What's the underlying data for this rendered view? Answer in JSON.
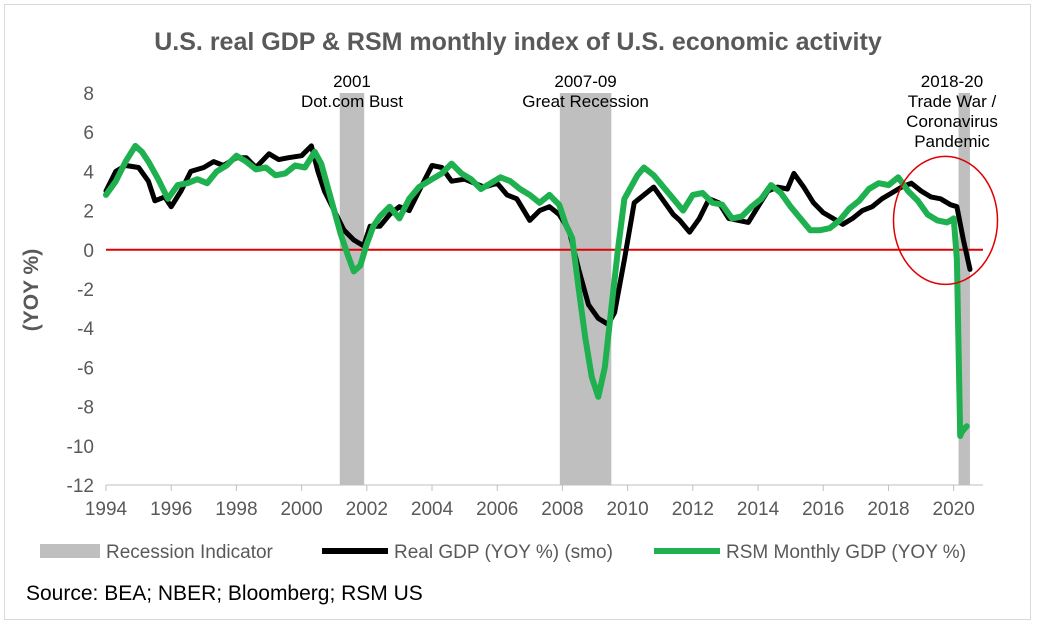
{
  "chart_data": {
    "type": "line",
    "title": "U.S. real GDP & RSM monthly index of U.S. economic activity",
    "ylabel": "(YOY %)",
    "xlabel": "",
    "xlim": [
      1994,
      2020.9
    ],
    "ylim": [
      -12,
      8
    ],
    "x_ticks": [
      1994,
      1996,
      1998,
      2000,
      2002,
      2004,
      2006,
      2008,
      2010,
      2012,
      2014,
      2016,
      2018,
      2020
    ],
    "y_ticks": [
      8,
      6,
      4,
      2,
      0,
      -2,
      -4,
      -6,
      -8,
      -10,
      -12
    ],
    "recessions": [
      {
        "start": 2001.17,
        "end": 2001.92,
        "label_lines": [
          "2001",
          "Dot.com Bust"
        ]
      },
      {
        "start": 2007.92,
        "end": 2009.5,
        "label_lines": [
          "2007-09",
          "Great Recession"
        ]
      },
      {
        "start": 2020.15,
        "end": 2020.5,
        "label_lines": [
          "2018-20",
          "Trade War /",
          "Coronavirus",
          "Pandemic"
        ]
      }
    ],
    "series": [
      {
        "name": "Real GDP (YOY %) (smo)",
        "color": "#000000",
        "x": [
          1994.0,
          1994.3,
          1994.6,
          1995.0,
          1995.3,
          1995.5,
          1995.8,
          1996.0,
          1996.3,
          1996.6,
          1997.0,
          1997.3,
          1997.6,
          1998.0,
          1998.3,
          1998.6,
          1999.0,
          1999.3,
          1999.6,
          2000.0,
          2000.3,
          2000.5,
          2000.7,
          2001.0,
          2001.3,
          2001.6,
          2001.9,
          2002.1,
          2002.4,
          2002.7,
          2003.0,
          2003.3,
          2003.6,
          2004.0,
          2004.3,
          2004.6,
          2005.0,
          2005.3,
          2005.6,
          2006.0,
          2006.3,
          2006.6,
          2007.0,
          2007.3,
          2007.6,
          2007.9,
          2008.2,
          2008.5,
          2008.8,
          2009.1,
          2009.4,
          2009.6,
          2009.9,
          2010.2,
          2010.5,
          2010.8,
          2011.1,
          2011.4,
          2011.6,
          2011.9,
          2012.2,
          2012.5,
          2012.8,
          2013.1,
          2013.4,
          2013.7,
          2014.0,
          2014.3,
          2014.6,
          2014.9,
          2015.1,
          2015.4,
          2015.7,
          2016.0,
          2016.3,
          2016.6,
          2016.9,
          2017.2,
          2017.5,
          2017.8,
          2018.1,
          2018.4,
          2018.7,
          2019.0,
          2019.3,
          2019.6,
          2019.9,
          2020.1,
          2020.3,
          2020.5
        ],
        "values": [
          3.0,
          4.0,
          4.3,
          4.2,
          3.5,
          2.5,
          2.7,
          2.2,
          3.0,
          4.0,
          4.2,
          4.5,
          4.3,
          4.7,
          4.7,
          4.2,
          4.9,
          4.6,
          4.7,
          4.8,
          5.3,
          4.0,
          3.0,
          2.0,
          1.0,
          0.5,
          0.2,
          1.2,
          1.2,
          1.8,
          2.2,
          2.0,
          3.0,
          4.3,
          4.2,
          3.5,
          3.6,
          3.4,
          3.2,
          3.4,
          2.8,
          2.6,
          1.5,
          2.0,
          2.2,
          1.8,
          1.0,
          -1.0,
          -2.8,
          -3.5,
          -3.8,
          -3.2,
          -0.5,
          2.4,
          2.8,
          3.2,
          2.5,
          1.8,
          1.5,
          0.9,
          1.6,
          2.6,
          2.4,
          1.6,
          1.5,
          1.4,
          2.2,
          3.0,
          3.2,
          3.1,
          3.9,
          3.2,
          2.4,
          1.9,
          1.6,
          1.3,
          1.6,
          2.0,
          2.2,
          2.6,
          2.9,
          3.2,
          3.4,
          3.0,
          2.7,
          2.6,
          2.3,
          2.2,
          0.5,
          -1.0
        ]
      },
      {
        "name": "RSM Monthly GDP (YOY %)",
        "color": "#1fb14f",
        "x": [
          1994.0,
          1994.3,
          1994.6,
          1994.9,
          1995.1,
          1995.3,
          1995.6,
          1995.9,
          1996.2,
          1996.5,
          1996.8,
          1997.1,
          1997.4,
          1997.7,
          1998.0,
          1998.3,
          1998.6,
          1998.9,
          1999.2,
          1999.5,
          1999.8,
          2000.1,
          2000.4,
          2000.6,
          2000.8,
          2001.0,
          2001.2,
          2001.4,
          2001.6,
          2001.8,
          2002.0,
          2002.2,
          2002.4,
          2002.7,
          2003.0,
          2003.3,
          2003.6,
          2004.0,
          2004.3,
          2004.6,
          2004.9,
          2005.2,
          2005.5,
          2005.8,
          2006.1,
          2006.4,
          2006.7,
          2007.0,
          2007.3,
          2007.6,
          2007.9,
          2008.1,
          2008.3,
          2008.5,
          2008.7,
          2008.9,
          2009.1,
          2009.3,
          2009.5,
          2009.7,
          2009.9,
          2010.1,
          2010.3,
          2010.5,
          2010.8,
          2011.1,
          2011.4,
          2011.7,
          2012.0,
          2012.3,
          2012.6,
          2012.9,
          2013.2,
          2013.5,
          2013.8,
          2014.1,
          2014.4,
          2014.7,
          2015.0,
          2015.3,
          2015.6,
          2015.9,
          2016.2,
          2016.5,
          2016.8,
          2017.1,
          2017.4,
          2017.7,
          2018.0,
          2018.3,
          2018.6,
          2018.9,
          2019.2,
          2019.5,
          2019.8,
          2020.0,
          2020.1,
          2020.2,
          2020.25,
          2020.3,
          2020.4
        ],
        "values": [
          2.8,
          3.5,
          4.5,
          5.3,
          5.0,
          4.5,
          3.6,
          2.6,
          3.3,
          3.4,
          3.6,
          3.4,
          4.0,
          4.3,
          4.8,
          4.5,
          4.1,
          4.2,
          3.8,
          3.9,
          4.3,
          4.2,
          5.0,
          4.4,
          3.2,
          2.0,
          0.8,
          -0.2,
          -1.1,
          -0.8,
          0.3,
          1.2,
          1.7,
          2.2,
          1.6,
          2.6,
          3.2,
          3.6,
          3.9,
          4.4,
          3.9,
          3.6,
          3.1,
          3.4,
          3.7,
          3.5,
          3.1,
          2.8,
          2.4,
          2.8,
          2.3,
          1.3,
          0.6,
          -2.0,
          -4.5,
          -6.5,
          -7.5,
          -6.0,
          -3.0,
          0.0,
          2.6,
          3.2,
          3.8,
          4.2,
          3.8,
          3.2,
          2.6,
          2.0,
          2.8,
          2.9,
          2.4,
          2.3,
          1.6,
          1.7,
          2.2,
          2.6,
          3.3,
          2.9,
          2.2,
          1.6,
          1.0,
          1.0,
          1.1,
          1.5,
          2.1,
          2.5,
          3.1,
          3.4,
          3.3,
          3.7,
          3.0,
          2.5,
          1.8,
          1.5,
          1.4,
          1.6,
          -0.5,
          -9.5,
          -9.3,
          -9.2,
          -9.0
        ]
      }
    ],
    "legend": [
      {
        "label": "Recession Indicator",
        "color": "#bfbfbf"
      },
      {
        "label": "Real GDP (YOY %) (smo)",
        "color": "#000000"
      },
      {
        "label": "RSM Monthly GDP (YOY %)",
        "color": "#1fb14f"
      }
    ],
    "zero_line_color": "#e00000",
    "highlight_circle_color": "#e00000",
    "source": "Source: BEA; NBER; Bloomberg; RSM US"
  }
}
